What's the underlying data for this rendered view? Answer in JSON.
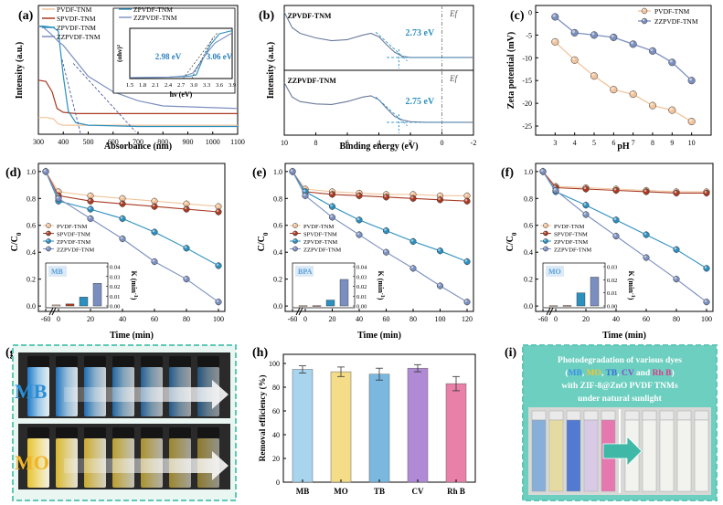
{
  "colors": {
    "pvdf": "#f2c49b",
    "spvdf": "#a83a22",
    "zpvdf": "#2b8fbf",
    "zzpvdf": "#7a8fc0",
    "teal_frame": "#5fc7b8",
    "orange_axis": "#e2a070",
    "navy_axis": "#5a6aa8"
  },
  "panels": {
    "a": {
      "letter": "(a)",
      "type": "line",
      "xlabel": "Absorbance (nm)",
      "ylabel": "Intensity (a.u.)",
      "xlim": [
        300,
        1100
      ],
      "xticks": [
        300,
        400,
        500,
        600,
        700,
        800,
        900,
        1000,
        1100
      ],
      "legend": [
        "PVDF-TNM",
        "SPVDF-TNM",
        "ZPVDF-TNM",
        "ZZPVDF-TNM"
      ],
      "series": [
        {
          "name": "PVDF-TNM",
          "x": [
            300,
            330,
            360,
            380,
            400,
            500,
            700,
            1100
          ],
          "y": [
            0.13,
            0.13,
            0.12,
            0.08,
            0.07,
            0.07,
            0.07,
            0.07
          ]
        },
        {
          "name": "SPVDF-TNM",
          "x": [
            300,
            330,
            355,
            375,
            400,
            450,
            600,
            1100
          ],
          "y": [
            0.42,
            0.41,
            0.33,
            0.2,
            0.17,
            0.16,
            0.16,
            0.16
          ]
        },
        {
          "name": "ZPVDF-TNM",
          "x": [
            300,
            320,
            360,
            380,
            400,
            420,
            450,
            500,
            700,
            1100
          ],
          "y": [
            0.84,
            0.84,
            0.83,
            0.8,
            0.45,
            0.18,
            0.09,
            0.07,
            0.06,
            0.06
          ]
        },
        {
          "name": "ZZPVDF-TNM",
          "x": [
            300,
            320,
            350,
            380,
            400,
            450,
            500,
            600,
            700,
            800,
            1100
          ],
          "y": [
            0.84,
            0.83,
            0.78,
            0.72,
            0.69,
            0.57,
            0.45,
            0.33,
            0.26,
            0.22,
            0.2
          ]
        }
      ],
      "inset": {
        "legend": [
          "ZPVDF-TNM",
          "ZZPVDF-TNM"
        ],
        "xlabel": "hν (eV)",
        "ylabel": "(αhν)²",
        "xticks": [
          "1.5",
          "1.8",
          "2.1",
          "2.4",
          "2.7",
          "3.0",
          "3.3",
          "3.6",
          "3.9"
        ],
        "xlim": [
          1.5,
          3.9
        ],
        "series": [
          {
            "name": "ZPVDF-TNM",
            "x": [
              1.5,
              2.4,
              2.9,
              3.06,
              3.2,
              3.4,
              3.6,
              3.9
            ],
            "y": [
              0.02,
              0.03,
              0.05,
              0.08,
              0.4,
              0.75,
              0.98,
              1.05
            ]
          },
          {
            "name": "ZZPVDF-TNM",
            "x": [
              1.5,
              2.4,
              2.8,
              2.98,
              3.1,
              3.3,
              3.5,
              3.9
            ],
            "y": [
              0.02,
              0.03,
              0.06,
              0.12,
              0.28,
              0.55,
              0.78,
              1.0
            ]
          }
        ],
        "labels": [
          "2.98 eV",
          "3.06 eV"
        ]
      }
    },
    "b": {
      "letter": "(b)",
      "type": "line",
      "xlabel": "Binding energy (eV)",
      "ylabel": "Intensity (a.u.)",
      "xlim": [
        10,
        -2
      ],
      "xticks": [
        "10",
        "8",
        "6",
        "4",
        "2",
        "0",
        "-2"
      ],
      "ef_label": "Ef",
      "top": {
        "name": "ZPVDF-TNM",
        "label": "2.73 eV",
        "x": [
          10,
          9.5,
          9,
          8,
          7,
          6,
          5,
          4.5,
          4,
          3.5,
          3,
          2.5,
          2,
          1,
          0,
          -2
        ],
        "y": [
          0.95,
          0.68,
          0.58,
          0.5,
          0.45,
          0.47,
          0.55,
          0.58,
          0.52,
          0.38,
          0.25,
          0.18,
          0.16,
          0.16,
          0.16,
          0.16
        ]
      },
      "bottom": {
        "name": "ZZPVDF-TNM",
        "label": "2.75 eV",
        "x": [
          10,
          9.5,
          9,
          8,
          7,
          6,
          5,
          4.5,
          4,
          3.5,
          3,
          2.5,
          2,
          1,
          0,
          -2
        ],
        "y": [
          0.85,
          0.6,
          0.52,
          0.48,
          0.47,
          0.52,
          0.6,
          0.62,
          0.55,
          0.4,
          0.26,
          0.2,
          0.17,
          0.16,
          0.16,
          0.16
        ]
      }
    },
    "c": {
      "letter": "(c)",
      "type": "line",
      "xlabel": "pH",
      "ylabel": "Zeta potential (mV)",
      "xlim": [
        2,
        11
      ],
      "ylim": [
        -25,
        0
      ],
      "xticks": [
        3,
        4,
        5,
        6,
        7,
        8,
        9,
        10
      ],
      "yticks": [
        0,
        -5,
        -10,
        -15,
        -20,
        -25
      ],
      "x": [
        3,
        4,
        5,
        6,
        7,
        8,
        9,
        10
      ],
      "series": [
        {
          "name": "PVDF-TNM",
          "values": [
            -6.5,
            -10.5,
            -14,
            -17,
            -18,
            -20.5,
            -21.5,
            -24
          ]
        },
        {
          "name": "ZZPVDF-TNM",
          "values": [
            -1,
            -4.5,
            -5,
            -5.5,
            -7,
            -8.5,
            -11,
            -15
          ]
        }
      ]
    },
    "def": {
      "ylabel": "C/C",
      "ylabel_sub": "0",
      "xlabel": "Time (min)",
      "inset_ylabel": "K (min",
      "inset_ylabel_sup": "-1",
      "legend": [
        "PVDF-TNM",
        "SPVDF-TNM",
        "ZPVDF-TNM",
        "ZZPVDF-TNM"
      ],
      "yticks": [
        "0.0",
        "0.2",
        "0.4",
        "0.6",
        "0.8",
        "1.0"
      ]
    },
    "d": {
      "letter": "(d)",
      "type": "line",
      "pollutant": "MB",
      "x": [
        -60,
        0,
        20,
        40,
        60,
        80,
        100
      ],
      "xticks": [
        "-60",
        "0",
        "20",
        "40",
        "60",
        "80",
        "100"
      ],
      "series": [
        {
          "name": "PVDF-TNM",
          "values": [
            1.0,
            0.85,
            0.82,
            0.8,
            0.78,
            0.76,
            0.74
          ]
        },
        {
          "name": "SPVDF-TNM",
          "values": [
            1.0,
            0.82,
            0.78,
            0.76,
            0.74,
            0.72,
            0.7
          ]
        },
        {
          "name": "ZPVDF-TNM",
          "values": [
            1.0,
            0.78,
            0.72,
            0.65,
            0.55,
            0.43,
            0.3
          ]
        },
        {
          "name": "ZZPVDF-TNM",
          "values": [
            1.0,
            0.8,
            0.65,
            0.5,
            0.33,
            0.2,
            0.03
          ]
        }
      ],
      "k": {
        "values": [
          0.001,
          0.002,
          0.009,
          0.023
        ],
        "ylim": [
          0,
          0.04
        ],
        "yticks": [
          "0.00",
          "0.01",
          "0.02",
          "0.03",
          "0.04"
        ]
      }
    },
    "e": {
      "letter": "(e)",
      "type": "line",
      "pollutant": "BPA",
      "x": [
        -60,
        0,
        20,
        40,
        60,
        80,
        100,
        120
      ],
      "xticks": [
        "-60",
        "0",
        "20",
        "40",
        "60",
        "80",
        "100",
        "120"
      ],
      "series": [
        {
          "name": "PVDF-TNM",
          "values": [
            1.0,
            0.87,
            0.85,
            0.84,
            0.83,
            0.83,
            0.82,
            0.82
          ]
        },
        {
          "name": "SPVDF-TNM",
          "values": [
            1.0,
            0.85,
            0.83,
            0.82,
            0.81,
            0.8,
            0.79,
            0.78
          ]
        },
        {
          "name": "ZPVDF-TNM",
          "values": [
            1.0,
            0.85,
            0.74,
            0.64,
            0.56,
            0.48,
            0.41,
            0.33
          ]
        },
        {
          "name": "ZZPVDF-TNM",
          "values": [
            1.0,
            0.82,
            0.66,
            0.53,
            0.4,
            0.28,
            0.15,
            0.03
          ]
        }
      ],
      "k": {
        "values": [
          0.0002,
          0.0003,
          0.006,
          0.027
        ],
        "ylim": [
          0,
          0.04
        ],
        "yticks": [
          "0.00",
          "0.01",
          "0.02",
          "0.03",
          "0.04"
        ]
      }
    },
    "f": {
      "letter": "(f)",
      "type": "line",
      "pollutant": "MO",
      "x": [
        -60,
        0,
        20,
        40,
        60,
        80,
        100
      ],
      "xticks": [
        "-60",
        "0",
        "20",
        "40",
        "60",
        "80",
        "100"
      ],
      "series": [
        {
          "name": "PVDF-TNM",
          "values": [
            1.0,
            0.89,
            0.88,
            0.87,
            0.86,
            0.85,
            0.85
          ]
        },
        {
          "name": "SPVDF-TNM",
          "values": [
            1.0,
            0.88,
            0.87,
            0.86,
            0.85,
            0.84,
            0.84
          ]
        },
        {
          "name": "ZPVDF-TNM",
          "values": [
            1.0,
            0.85,
            0.75,
            0.64,
            0.53,
            0.42,
            0.28
          ]
        },
        {
          "name": "ZZPVDF-TNM",
          "values": [
            1.0,
            0.86,
            0.68,
            0.52,
            0.36,
            0.2,
            0.03
          ]
        }
      ],
      "k": {
        "values": [
          0.0002,
          0.0003,
          0.01,
          0.022
        ],
        "ylim": [
          0,
          0.03
        ],
        "yticks": [
          "0.00",
          "0.01",
          "0.02",
          "0.03"
        ]
      }
    },
    "g": {
      "letter": "(g)",
      "rows": [
        {
          "label": "MB",
          "label_color": "#2b8fd6"
        },
        {
          "label": "MO",
          "label_color": "#f0b428"
        }
      ]
    },
    "h": {
      "letter": "(h)",
      "type": "bar",
      "ylabel": "Removal efficiency (%)",
      "categories": [
        "MB",
        "MO",
        "TB",
        "CV",
        "Rh B"
      ],
      "values": [
        95,
        93,
        91,
        96,
        83
      ],
      "errors": [
        3,
        4,
        5,
        3,
        6
      ],
      "ylim": [
        0,
        100
      ],
      "yticks": [
        "0",
        "20",
        "40",
        "60",
        "80",
        "100"
      ],
      "bar_colors": [
        "#a8d4ee",
        "#f4dc88",
        "#7ab8e0",
        "#b08ad4",
        "#e880a8"
      ]
    },
    "i": {
      "letter": "(i)",
      "line1": "Photodegradation of various dyes",
      "open": "(",
      "dyes": [
        {
          "name": "MB",
          "color": "#3a8fe8"
        },
        {
          "name": "MO",
          "color": "#f4c430"
        },
        {
          "name": "TB",
          "color": "#3a6fd8"
        },
        {
          "name": "CV",
          "color": "#8a4ad0"
        },
        {
          "name": "Rh B",
          "color": "#e03a8a"
        }
      ],
      "sep1": ", ",
      "sep_and": " and ",
      "close": ")",
      "line3": "with ZIF-8@ZnO PVDF TNMs",
      "line4": "under natural sunlight"
    }
  }
}
